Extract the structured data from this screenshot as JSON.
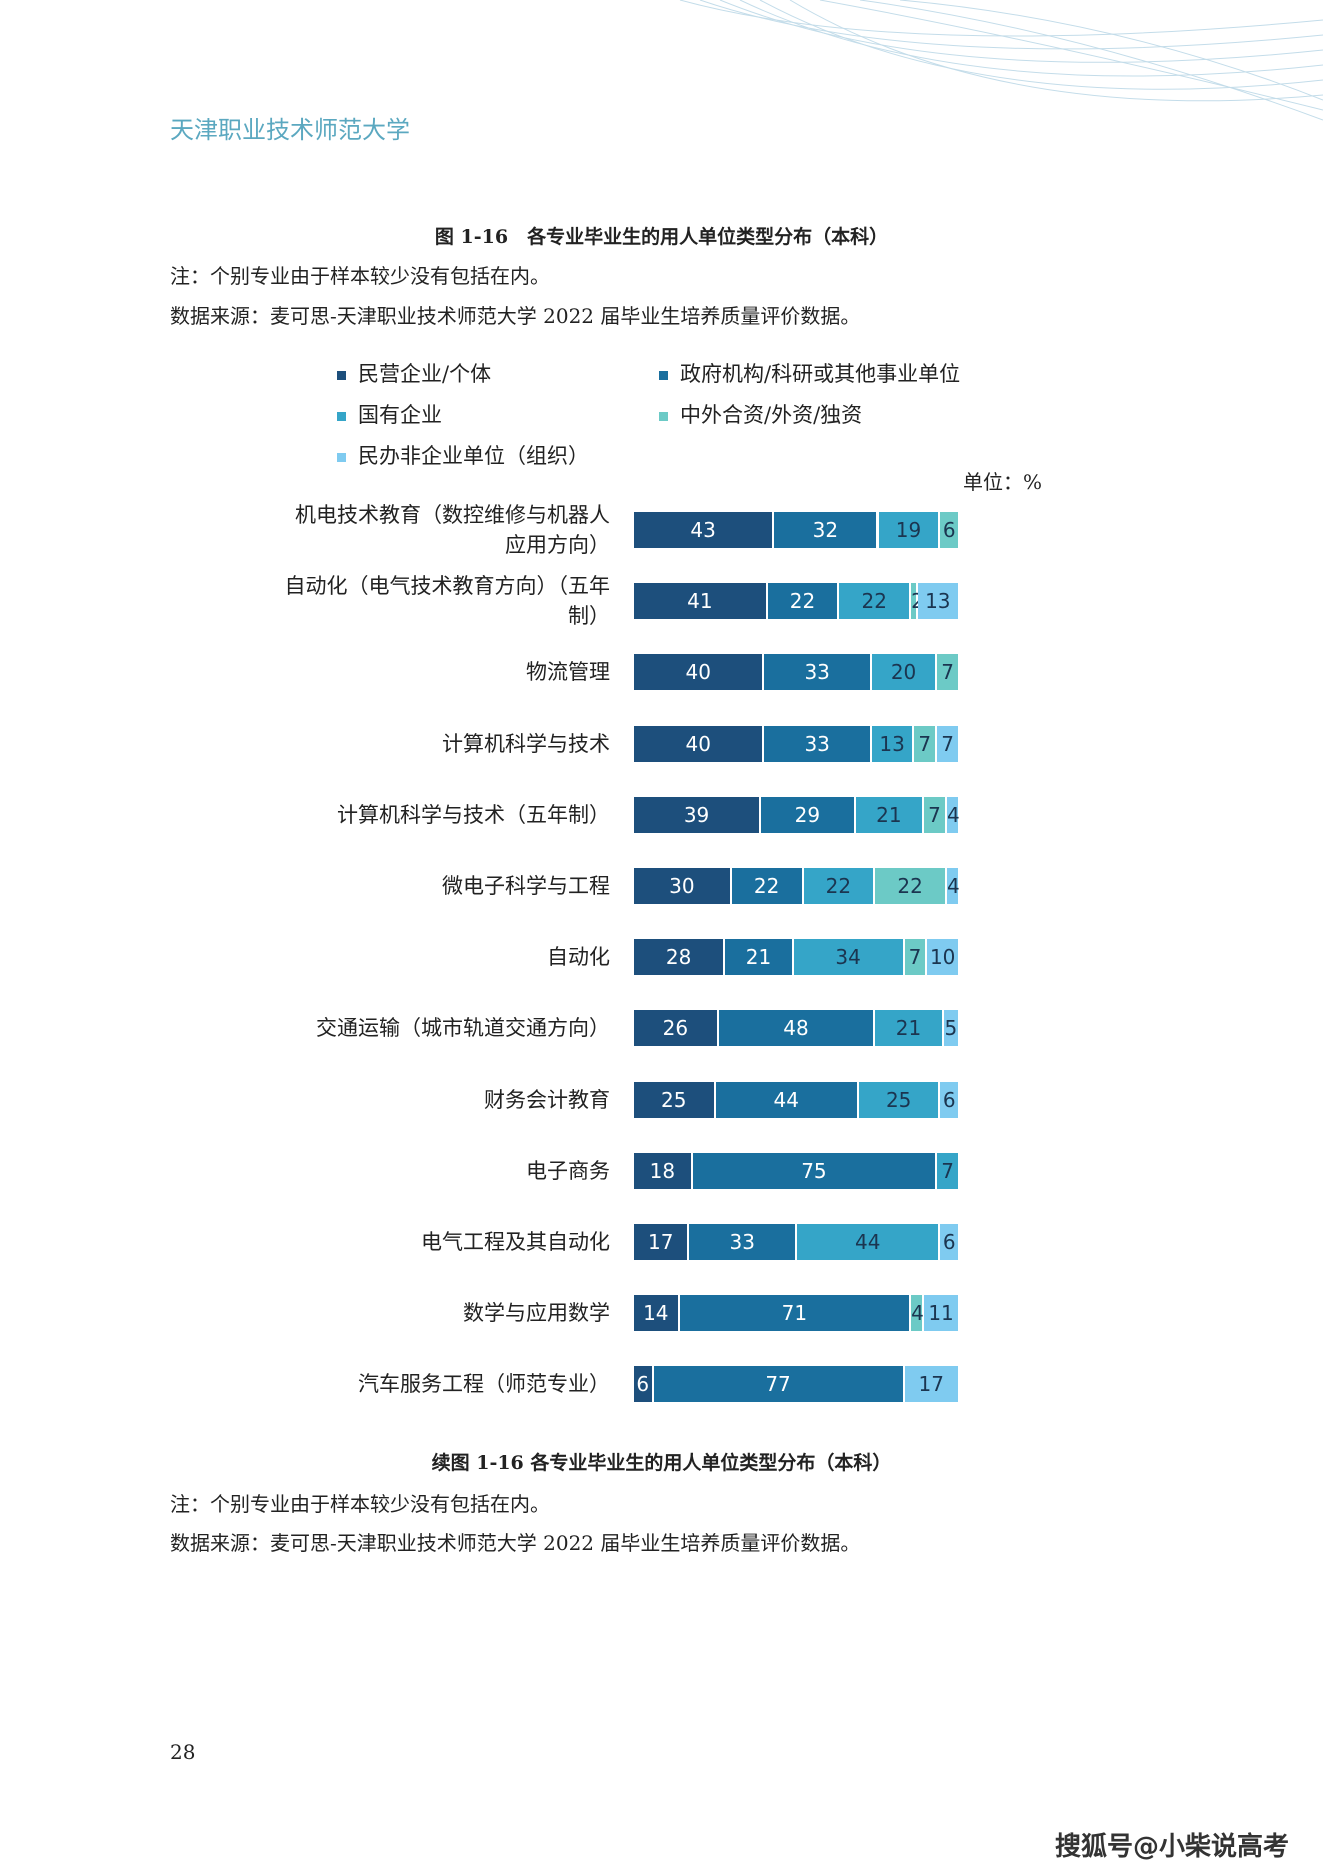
{
  "header": {
    "title": "天津职业技术师范大学"
  },
  "chart_data": {
    "type": "bar",
    "orientation": "horizontal",
    "stacked": true,
    "title": "图 1-16　各专业毕业生的用人单位类型分布（本科）",
    "note": "注：个别专业由于样本较少没有包括在内。",
    "source": "数据来源：麦可思-天津职业技术师范大学 2022 届毕业生培养质量评价数据。",
    "unit": "单位：%",
    "categories": [
      "机电技术教育（数控维修与机器人应用方向）",
      "自动化（电气技术教育方向）（五年制）",
      "物流管理",
      "计算机科学与技术",
      "计算机科学与技术（五年制）",
      "微电子科学与工程",
      "自动化",
      "交通运输（城市轨道交通方向）",
      "财务会计教育",
      "电子商务",
      "电气工程及其自动化",
      "数学与应用数学",
      "汽车服务工程（师范专业）"
    ],
    "series": [
      {
        "name": "民营企业/个体",
        "color": "#1d4f7c",
        "values": [
          43,
          41,
          40,
          40,
          39,
          30,
          28,
          26,
          25,
          18,
          17,
          14,
          6
        ]
      },
      {
        "name": "政府机构/科研或其他事业单位",
        "color": "#1a6f9e",
        "values": [
          32,
          22,
          33,
          33,
          29,
          22,
          21,
          48,
          44,
          75,
          33,
          71,
          77
        ]
      },
      {
        "name": "国有企业",
        "color": "#35a5c8",
        "values": [
          19,
          22,
          20,
          13,
          21,
          22,
          34,
          21,
          25,
          7,
          44,
          null,
          null
        ]
      },
      {
        "name": "中外合资/外资/独资",
        "color": "#6ccac6",
        "values": [
          6,
          2,
          7,
          7,
          7,
          22,
          7,
          null,
          null,
          null,
          null,
          4,
          null
        ]
      },
      {
        "name": "民办非企业单位（组织）",
        "color": "#7fcbf0",
        "values": [
          null,
          13,
          null,
          7,
          4,
          4,
          10,
          5,
          6,
          null,
          6,
          11,
          17
        ]
      }
    ]
  },
  "continuation": {
    "title": "续图 1-16 各专业毕业生的用人单位类型分布（本科）",
    "note": "注：个别专业由于样本较少没有包括在内。",
    "source": "数据来源：麦可思-天津职业技术师范大学 2022 届毕业生培养质量评价数据。"
  },
  "page_number": "28",
  "watermark": "搜狐号@小柴说高考"
}
